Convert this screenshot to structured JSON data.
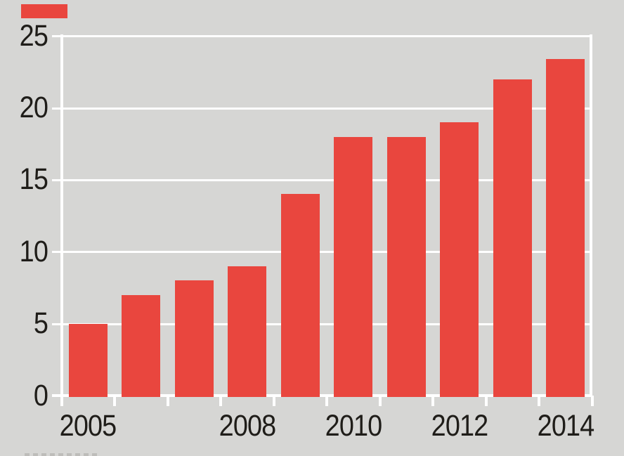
{
  "ui": {
    "background_color": "#d6d6d4",
    "accent_slug_color": "#e9463e",
    "bottom_cutoff_text": "(top sliver of cropped caption text, illegible)"
  },
  "chart_data": {
    "type": "bar",
    "categories": [
      "2005",
      "2006",
      "2007",
      "2008",
      "2009",
      "2010",
      "2011",
      "2012",
      "2013",
      "2014"
    ],
    "values": [
      5,
      7,
      8,
      9,
      14,
      18,
      18,
      19,
      22,
      23.4
    ],
    "title": "",
    "xlabel": "",
    "ylabel": "",
    "ylim": [
      0,
      25
    ],
    "yticks": [
      0,
      5,
      10,
      15,
      20,
      25
    ],
    "x_axis_labels": [
      {
        "text": "2005",
        "category_index": 0
      },
      {
        "text": "2008",
        "category_index": 3
      },
      {
        "text": "2010",
        "category_index": 5
      },
      {
        "text": "2012",
        "category_index": 7
      },
      {
        "text": "2014",
        "category_index": 9
      }
    ],
    "grid": true,
    "legend": "none",
    "bar_color": "#e9463e",
    "gridline_color": "#ffffff",
    "text_color": "#1f1d19",
    "plot_background": "#d6d6d4"
  }
}
